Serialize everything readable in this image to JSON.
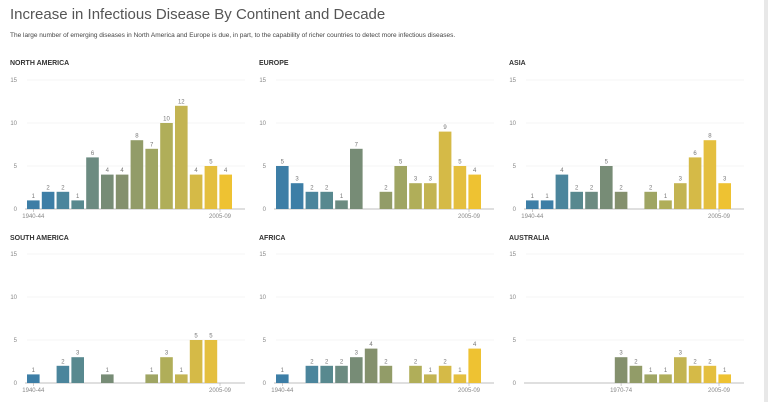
{
  "title": "Increase in Infectious Disease By Continent and Decade",
  "subtitle": "The large number of emerging diseases in North America and Europe is due, in part, to the capability of richer countries to detect more infectious diseases.",
  "colors": [
    "#3d7ea6",
    "#3d7ea6",
    "#4b859c",
    "#58898f",
    "#6c8b81",
    "#778c76",
    "#84906d",
    "#929c68",
    "#9fa563",
    "#b0ae59",
    "#c3b452",
    "#d5ba47",
    "#e4bf3f",
    "#eec232"
  ],
  "chart_data": [
    {
      "type": "bar",
      "title": "NORTH AMERICA",
      "x_start_label": "1940-44",
      "x_end_label": "2005-09",
      "yticks": [
        0,
        5,
        10,
        15
      ],
      "ylim": [
        0,
        15
      ],
      "values": [
        1,
        2,
        2,
        1,
        6,
        4,
        4,
        8,
        7,
        10,
        12,
        4,
        5,
        4
      ]
    },
    {
      "type": "bar",
      "title": "EUROPE",
      "x_start_label": "",
      "x_end_label": "2005-09",
      "yticks": [
        0,
        5,
        10,
        15
      ],
      "ylim": [
        0,
        15
      ],
      "values": [
        5,
        3,
        2,
        2,
        1,
        7,
        null,
        2,
        5,
        3,
        3,
        9,
        5,
        4
      ]
    },
    {
      "type": "bar",
      "title": "ASIA",
      "x_start_label": "1940-44",
      "x_end_label": "2005-09",
      "yticks": [
        0,
        5,
        10,
        15
      ],
      "ylim": [
        0,
        15
      ],
      "values": [
        1,
        1,
        4,
        2,
        2,
        5,
        2,
        null,
        2,
        1,
        3,
        6,
        8,
        3
      ]
    },
    {
      "type": "bar",
      "title": "SOUTH AMERICA",
      "x_start_label": "1940-44",
      "x_end_label": "2005-09",
      "yticks": [
        0,
        5,
        10,
        15
      ],
      "ylim": [
        0,
        15
      ],
      "values": [
        1,
        null,
        2,
        3,
        null,
        1,
        null,
        null,
        1,
        3,
        1,
        5,
        5,
        null
      ]
    },
    {
      "type": "bar",
      "title": "AFRICA",
      "x_start_label": "1940-44",
      "x_end_label": "2005-09",
      "yticks": [
        0,
        5,
        10,
        15
      ],
      "ylim": [
        0,
        15
      ],
      "values": [
        1,
        null,
        2,
        2,
        2,
        3,
        4,
        2,
        null,
        2,
        1,
        2,
        1,
        4
      ]
    },
    {
      "type": "bar",
      "title": "AUSTRALIA",
      "x_start_label": "1970-74",
      "x_end_label": "2005-09",
      "yticks": [
        0,
        5,
        10,
        15
      ],
      "ylim": [
        0,
        15
      ],
      "values": [
        null,
        null,
        null,
        null,
        null,
        null,
        3,
        2,
        1,
        1,
        3,
        2,
        2,
        1
      ]
    }
  ]
}
